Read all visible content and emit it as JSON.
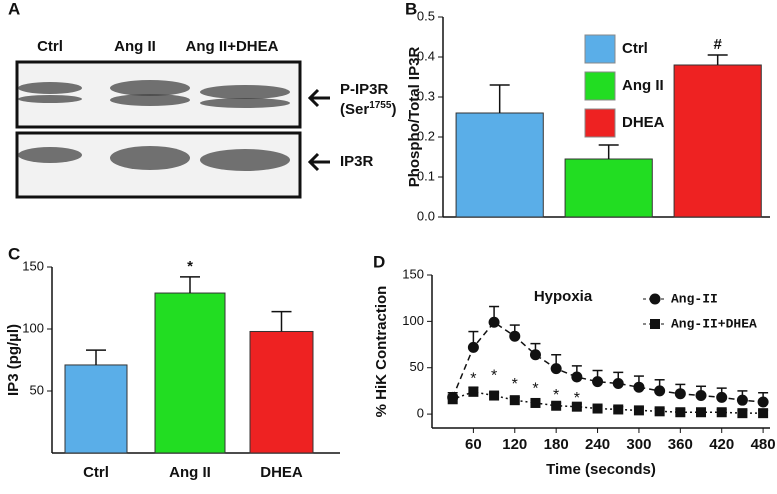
{
  "blot": {
    "panel": "A",
    "lanes": [
      "Ctrl",
      "Ang II",
      "Ang II+DHEA"
    ],
    "rows": [
      {
        "label": "P-IP3R",
        "sublabel": [
          "(Ser",
          "1755",
          ")"
        ]
      },
      {
        "label": "IP3R"
      }
    ]
  },
  "chart_data": [
    {
      "type": "bar",
      "panel": "B",
      "ylabel": "Phospho/Total IP3R",
      "series": [
        {
          "name": "Ctrl",
          "color": "#5aaee8",
          "values": [
            0.26
          ],
          "errors": [
            0.07
          ]
        },
        {
          "name": "Ang II",
          "color": "#22dd22",
          "values": [
            0.145
          ],
          "errors": [
            0.035
          ]
        },
        {
          "name": "DHEA",
          "color": "#ee2222",
          "values": [
            0.38
          ],
          "errors": [
            0.025
          ]
        }
      ],
      "annotations": [
        {
          "series": "DHEA",
          "text": "#"
        }
      ],
      "ylim": [
        0,
        0.5
      ],
      "yticks": [
        {
          "value": 0,
          "label": "0.0"
        },
        0.1,
        0.2,
        0.3,
        0.4,
        0.5
      ],
      "legend": "upper left"
    },
    {
      "type": "bar",
      "panel": "C",
      "ylabel": "IP3 (pg/µl)",
      "categories": [
        "Ctrl",
        "Ang II",
        "DHEA"
      ],
      "values": [
        71,
        129,
        98
      ],
      "errors": [
        12,
        13,
        16
      ],
      "colors": [
        "#5aaee8",
        "#22dd22",
        "#ee2222"
      ],
      "annotations": [
        {
          "category": "Ang II",
          "text": "*"
        }
      ],
      "ylim": [
        0,
        150
      ],
      "yticks": [
        50,
        100,
        150
      ]
    },
    {
      "type": "line",
      "panel": "D",
      "title": "Hypoxia",
      "xlabel": "Time (seconds)",
      "ylabel": "% HiK Contraction",
      "x": [
        30,
        60,
        90,
        120,
        150,
        180,
        210,
        240,
        270,
        300,
        330,
        360,
        390,
        420,
        450,
        480
      ],
      "series": [
        {
          "name": "Ang-II",
          "color": "#111111",
          "marker": "circle",
          "line_style": "dashed",
          "values": [
            18,
            72,
            99,
            84,
            64,
            49,
            40,
            35,
            33,
            29,
            25,
            22,
            20,
            18,
            15,
            13
          ],
          "errors": [
            5,
            17,
            17,
            12,
            12,
            15,
            12,
            12,
            12,
            12,
            12,
            10,
            10,
            10,
            10,
            10
          ]
        },
        {
          "name": "Ang-II+DHEA",
          "color": "#111111",
          "marker": "square",
          "line_style": "dotted",
          "values": [
            16,
            24,
            20,
            15,
            12,
            9,
            8,
            6,
            5,
            4,
            3,
            2,
            2,
            2,
            1,
            1
          ],
          "errors": [
            3,
            5,
            3,
            3,
            3,
            3,
            3,
            3,
            3,
            3,
            3,
            3,
            3,
            3,
            3,
            3
          ]
        }
      ],
      "annotations": [
        {
          "x": 60,
          "y": 42,
          "text": "*"
        },
        {
          "x": 90,
          "y": 45,
          "text": "*"
        },
        {
          "x": 120,
          "y": 36,
          "text": "*"
        },
        {
          "x": 150,
          "y": 31,
          "text": "*"
        },
        {
          "x": 180,
          "y": 24,
          "text": "*"
        },
        {
          "x": 210,
          "y": 21,
          "text": "*"
        }
      ],
      "xlim": [
        0,
        490
      ],
      "xticks": [
        60,
        120,
        180,
        240,
        300,
        360,
        420,
        480
      ],
      "ylim": [
        -15,
        150
      ],
      "yticks": [
        0,
        50,
        100,
        150
      ],
      "legend": "upper right"
    }
  ]
}
